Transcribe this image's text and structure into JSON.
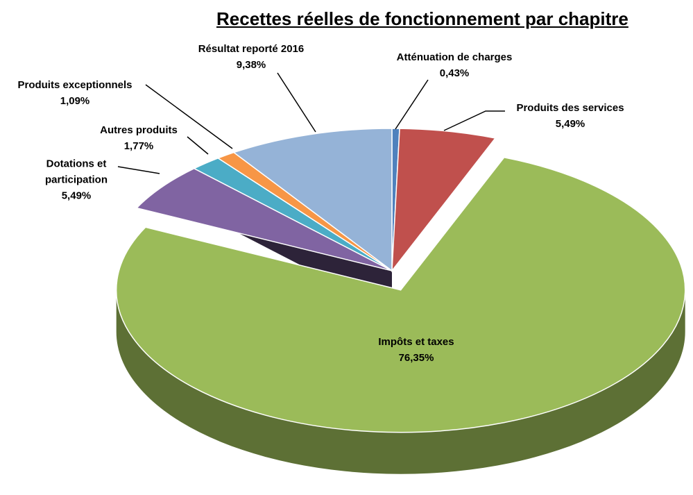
{
  "chart_data": {
    "type": "pie",
    "title": "Recettes réelles de fonctionnement par chapitre",
    "categories": [
      "Atténuation de charges",
      "Produits des services",
      "Impôts et taxes",
      "Dotations et participation",
      "Autres produits",
      "Produits exceptionnels",
      "Résultat reporté 2016"
    ],
    "values": [
      0.43,
      5.49,
      76.35,
      5.49,
      1.77,
      1.09,
      9.38
    ],
    "value_labels": [
      "0,43%",
      "5,49%",
      "76,35%",
      "5,49%",
      "1,77%",
      "1,09%",
      "9,38%"
    ],
    "colors": [
      "#4f81bd",
      "#c0504d",
      "#9bbb59",
      "#8064a2",
      "#4bacc6",
      "#f79646",
      "#95b3d7"
    ]
  }
}
